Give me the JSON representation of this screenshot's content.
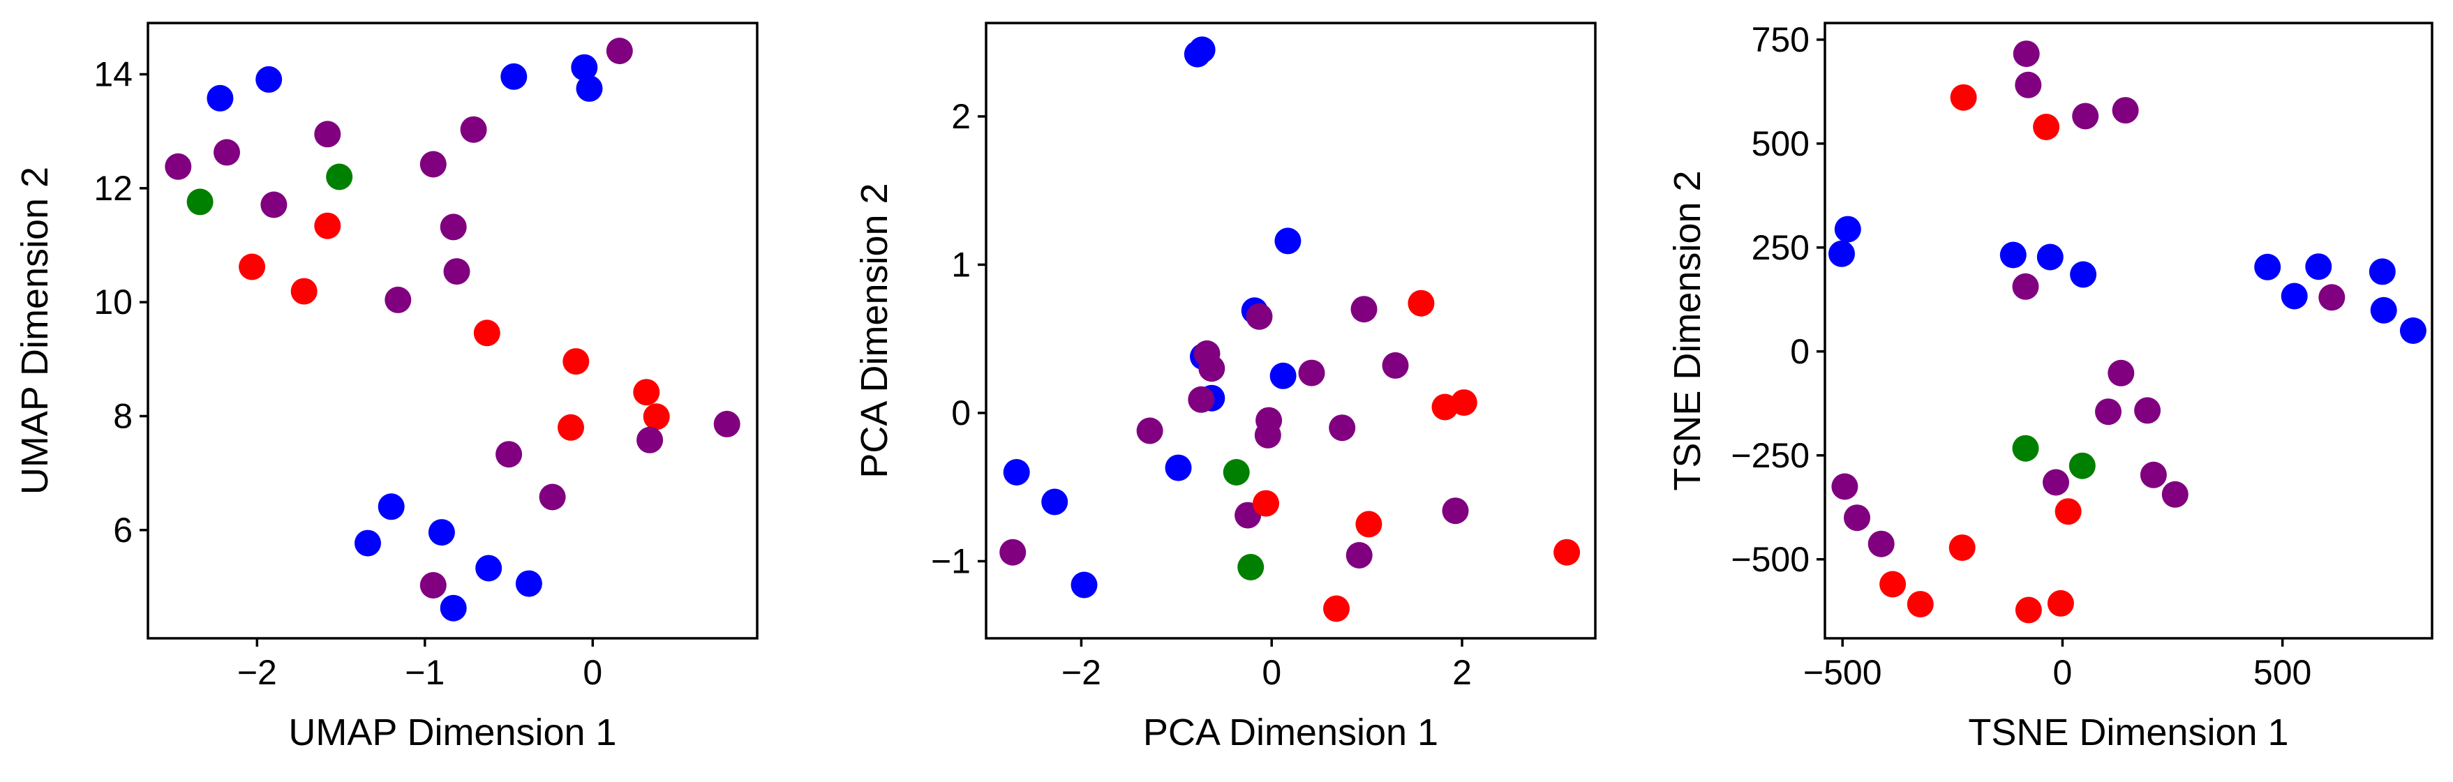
{
  "colors": {
    "blue": "#0000ff",
    "purple": "#800080",
    "green": "#008000",
    "red": "#ff0000"
  },
  "chart_data": [
    {
      "type": "scatter",
      "xlabel": "UMAP Dimension 1",
      "ylabel": "UMAP Dimension 2",
      "xlim": [
        -2.65,
        0.98
      ],
      "ylim": [
        4.1,
        14.9
      ],
      "xticks": [
        -2,
        -1,
        0
      ],
      "yticks": [
        6,
        8,
        10,
        12,
        14
      ],
      "grid": false,
      "points": [
        {
          "x": -2.22,
          "y": 13.58,
          "color": "blue"
        },
        {
          "x": -1.93,
          "y": 13.91,
          "color": "blue"
        },
        {
          "x": -0.47,
          "y": 13.96,
          "color": "blue"
        },
        {
          "x": -0.05,
          "y": 14.12,
          "color": "blue"
        },
        {
          "x": -0.02,
          "y": 13.75,
          "color": "blue"
        },
        {
          "x": 0.16,
          "y": 14.41,
          "color": "purple"
        },
        {
          "x": -2.47,
          "y": 12.38,
          "color": "purple"
        },
        {
          "x": -2.18,
          "y": 12.63,
          "color": "purple"
        },
        {
          "x": -1.9,
          "y": 11.71,
          "color": "purple"
        },
        {
          "x": -1.58,
          "y": 12.95,
          "color": "purple"
        },
        {
          "x": -0.95,
          "y": 12.42,
          "color": "purple"
        },
        {
          "x": -0.71,
          "y": 13.03,
          "color": "purple"
        },
        {
          "x": -0.83,
          "y": 11.32,
          "color": "purple"
        },
        {
          "x": -0.81,
          "y": 10.54,
          "color": "purple"
        },
        {
          "x": -1.16,
          "y": 10.04,
          "color": "purple"
        },
        {
          "x": -2.34,
          "y": 11.76,
          "color": "green"
        },
        {
          "x": -1.51,
          "y": 12.2,
          "color": "green"
        },
        {
          "x": -1.58,
          "y": 11.34,
          "color": "red"
        },
        {
          "x": -2.03,
          "y": 10.62,
          "color": "red"
        },
        {
          "x": -1.72,
          "y": 10.19,
          "color": "red"
        },
        {
          "x": -0.63,
          "y": 9.46,
          "color": "red"
        },
        {
          "x": -0.1,
          "y": 8.96,
          "color": "red"
        },
        {
          "x": 0.32,
          "y": 8.42,
          "color": "red"
        },
        {
          "x": 0.38,
          "y": 7.99,
          "color": "red"
        },
        {
          "x": -0.13,
          "y": 7.8,
          "color": "red"
        },
        {
          "x": 0.8,
          "y": 7.86,
          "color": "purple"
        },
        {
          "x": 0.34,
          "y": 7.58,
          "color": "purple"
        },
        {
          "x": -0.5,
          "y": 7.33,
          "color": "purple"
        },
        {
          "x": -0.24,
          "y": 6.58,
          "color": "purple"
        },
        {
          "x": -0.95,
          "y": 5.03,
          "color": "purple"
        },
        {
          "x": -1.2,
          "y": 6.41,
          "color": "blue"
        },
        {
          "x": -1.34,
          "y": 5.77,
          "color": "blue"
        },
        {
          "x": -0.9,
          "y": 5.96,
          "color": "blue"
        },
        {
          "x": -0.62,
          "y": 5.33,
          "color": "blue"
        },
        {
          "x": -0.38,
          "y": 5.06,
          "color": "blue"
        },
        {
          "x": -0.83,
          "y": 4.63,
          "color": "blue"
        }
      ]
    },
    {
      "type": "scatter",
      "xlabel": "PCA Dimension 1",
      "ylabel": "PCA Dimension 2",
      "xlim": [
        -3.0,
        3.4
      ],
      "ylim": [
        -1.52,
        2.63
      ],
      "xticks": [
        -2,
        0,
        2
      ],
      "yticks": [
        -1,
        0,
        1,
        2
      ],
      "grid": false,
      "points": [
        {
          "x": -0.78,
          "y": 2.42,
          "color": "blue"
        },
        {
          "x": -0.73,
          "y": 2.45,
          "color": "blue"
        },
        {
          "x": 0.17,
          "y": 1.16,
          "color": "blue"
        },
        {
          "x": -0.18,
          "y": 0.69,
          "color": "blue"
        },
        {
          "x": 0.12,
          "y": 0.25,
          "color": "blue"
        },
        {
          "x": -0.72,
          "y": 0.38,
          "color": "blue"
        },
        {
          "x": -0.63,
          "y": 0.1,
          "color": "blue"
        },
        {
          "x": -0.98,
          "y": -0.37,
          "color": "blue"
        },
        {
          "x": -2.68,
          "y": -0.4,
          "color": "blue"
        },
        {
          "x": -2.28,
          "y": -0.6,
          "color": "blue"
        },
        {
          "x": -1.97,
          "y": -1.16,
          "color": "blue"
        },
        {
          "x": -0.13,
          "y": 0.65,
          "color": "purple"
        },
        {
          "x": 0.97,
          "y": 0.7,
          "color": "purple"
        },
        {
          "x": 0.42,
          "y": 0.27,
          "color": "purple"
        },
        {
          "x": 1.3,
          "y": 0.32,
          "color": "purple"
        },
        {
          "x": -0.68,
          "y": 0.4,
          "color": "purple"
        },
        {
          "x": -0.63,
          "y": 0.3,
          "color": "purple"
        },
        {
          "x": -0.74,
          "y": 0.09,
          "color": "purple"
        },
        {
          "x": -1.28,
          "y": -0.12,
          "color": "purple"
        },
        {
          "x": -0.03,
          "y": -0.05,
          "color": "purple"
        },
        {
          "x": -0.04,
          "y": -0.15,
          "color": "purple"
        },
        {
          "x": 0.74,
          "y": -0.1,
          "color": "purple"
        },
        {
          "x": -0.25,
          "y": -0.69,
          "color": "purple"
        },
        {
          "x": 0.92,
          "y": -0.96,
          "color": "purple"
        },
        {
          "x": 1.93,
          "y": -0.66,
          "color": "purple"
        },
        {
          "x": -2.72,
          "y": -0.94,
          "color": "purple"
        },
        {
          "x": 1.57,
          "y": 0.74,
          "color": "red"
        },
        {
          "x": 1.82,
          "y": 0.04,
          "color": "red"
        },
        {
          "x": 2.02,
          "y": 0.07,
          "color": "red"
        },
        {
          "x": -0.06,
          "y": -0.61,
          "color": "red"
        },
        {
          "x": 1.02,
          "y": -0.75,
          "color": "red"
        },
        {
          "x": 3.1,
          "y": -0.94,
          "color": "red"
        },
        {
          "x": 0.68,
          "y": -1.32,
          "color": "red"
        },
        {
          "x": -0.37,
          "y": -0.4,
          "color": "green"
        },
        {
          "x": -0.22,
          "y": -1.04,
          "color": "green"
        }
      ]
    },
    {
      "type": "scatter",
      "xlabel": "TSNE Dimension 1",
      "ylabel": "TSNE Dimension 2",
      "xlim": [
        -540,
        840
      ],
      "ylim": [
        -690,
        790
      ],
      "xticks": [
        -500,
        0,
        500
      ],
      "yticks": [
        -500,
        -250,
        0,
        250,
        500,
        750
      ],
      "grid": false,
      "points": [
        {
          "x": -82,
          "y": 716,
          "color": "purple"
        },
        {
          "x": -78,
          "y": 641,
          "color": "purple"
        },
        {
          "x": 52,
          "y": 566,
          "color": "purple"
        },
        {
          "x": 143,
          "y": 580,
          "color": "purple"
        },
        {
          "x": -225,
          "y": 611,
          "color": "red"
        },
        {
          "x": -37,
          "y": 540,
          "color": "red"
        },
        {
          "x": -488,
          "y": 294,
          "color": "blue"
        },
        {
          "x": -502,
          "y": 235,
          "color": "blue"
        },
        {
          "x": -112,
          "y": 232,
          "color": "blue"
        },
        {
          "x": -28,
          "y": 227,
          "color": "blue"
        },
        {
          "x": 47,
          "y": 185,
          "color": "blue"
        },
        {
          "x": -84,
          "y": 156,
          "color": "purple"
        },
        {
          "x": 466,
          "y": 203,
          "color": "blue"
        },
        {
          "x": 582,
          "y": 204,
          "color": "blue"
        },
        {
          "x": 727,
          "y": 192,
          "color": "blue"
        },
        {
          "x": 527,
          "y": 133,
          "color": "blue"
        },
        {
          "x": 730,
          "y": 99,
          "color": "blue"
        },
        {
          "x": 797,
          "y": 50,
          "color": "blue"
        },
        {
          "x": 612,
          "y": 130,
          "color": "purple"
        },
        {
          "x": 133,
          "y": -52,
          "color": "purple"
        },
        {
          "x": 104,
          "y": -145,
          "color": "purple"
        },
        {
          "x": 193,
          "y": -142,
          "color": "purple"
        },
        {
          "x": 207,
          "y": -297,
          "color": "purple"
        },
        {
          "x": 256,
          "y": -344,
          "color": "purple"
        },
        {
          "x": -15,
          "y": -315,
          "color": "purple"
        },
        {
          "x": -84,
          "y": -233,
          "color": "green"
        },
        {
          "x": 45,
          "y": -275,
          "color": "green"
        },
        {
          "x": 13,
          "y": -385,
          "color": "red"
        },
        {
          "x": -495,
          "y": -325,
          "color": "purple"
        },
        {
          "x": -467,
          "y": -400,
          "color": "purple"
        },
        {
          "x": -412,
          "y": -463,
          "color": "purple"
        },
        {
          "x": -228,
          "y": -472,
          "color": "red"
        },
        {
          "x": -386,
          "y": -560,
          "color": "red"
        },
        {
          "x": -323,
          "y": -608,
          "color": "red"
        },
        {
          "x": -77,
          "y": -622,
          "color": "red"
        },
        {
          "x": -4,
          "y": -606,
          "color": "red"
        }
      ]
    }
  ]
}
